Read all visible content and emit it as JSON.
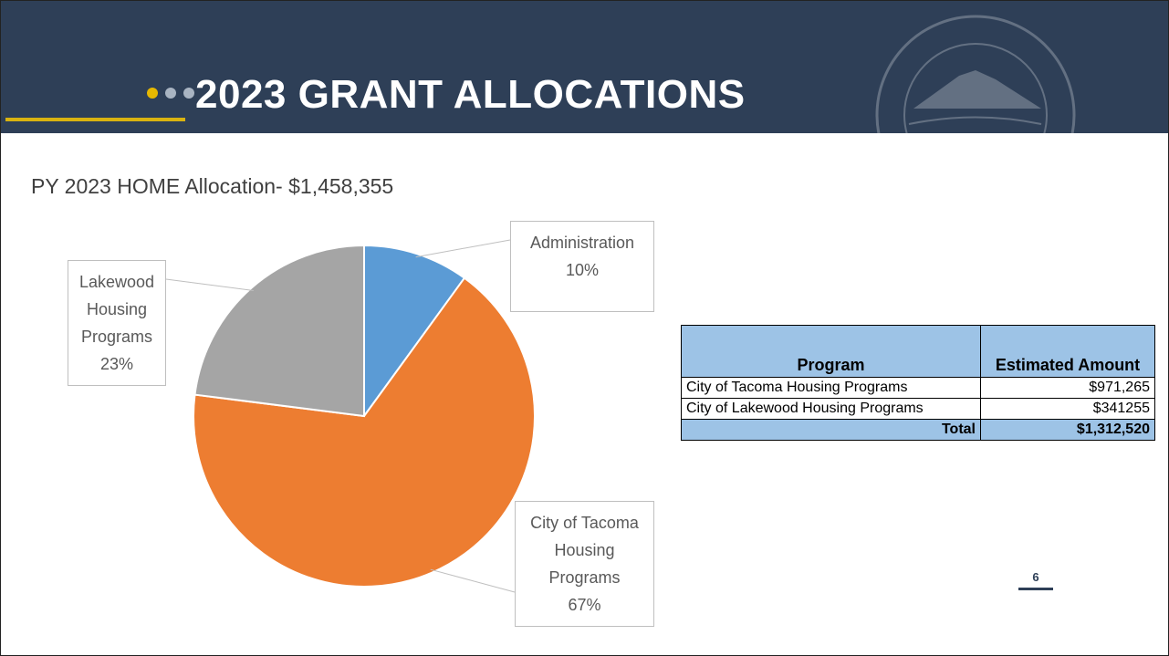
{
  "header": {
    "title": "2023 GRANT ALLOCATIONS"
  },
  "chart_data": {
    "type": "pie",
    "title": "PY 2023 HOME Allocation- $1,458,355",
    "categories": [
      "Administration",
      "City of Tacoma Housing Programs",
      "Lakewood Housing Programs"
    ],
    "values": [
      10,
      67,
      23
    ],
    "value_labels": [
      "10%",
      "67%",
      "23%"
    ],
    "colors": [
      "#5b9bd5",
      "#ed7d31",
      "#a5a5a5"
    ]
  },
  "table": {
    "header": [
      "Program",
      "Estimated Amount"
    ],
    "rows": [
      [
        "City of Tacoma Housing Programs",
        "$971,265"
      ],
      [
        "City of Lakewood Housing Programs",
        "$341255"
      ]
    ],
    "total": [
      "Total",
      "$1,312,520"
    ]
  },
  "page_number": "6"
}
